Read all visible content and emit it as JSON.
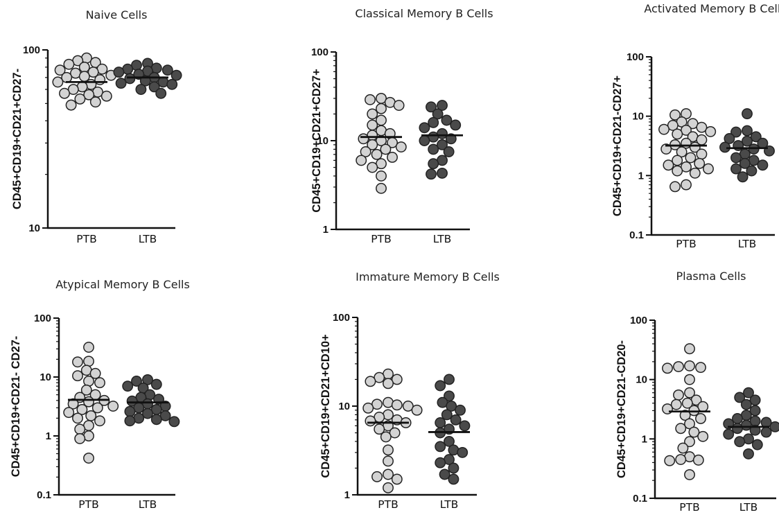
{
  "chart_data": [
    {
      "type": "scatter",
      "title": "Naive Cells",
      "ylabel": "CD45+CD19+CD21+CD27-",
      "yscale": "log",
      "ylim": [
        10,
        100
      ],
      "yticks": [
        "10",
        "100"
      ],
      "categories": [
        "PTB",
        "LTB"
      ],
      "series": [
        {
          "category": "PTB",
          "color": "#d3d3d3",
          "mean": 66,
          "values": [
            90,
            87,
            85,
            83,
            80,
            78,
            77,
            75,
            74,
            72,
            71,
            70,
            68,
            66,
            64,
            62,
            60,
            58,
            57,
            56,
            55,
            53,
            51,
            49
          ]
        },
        {
          "category": "LTB",
          "color": "#4a4a4a",
          "mean": 70,
          "values": [
            84,
            82,
            79,
            78,
            77,
            76,
            75,
            73,
            72,
            70,
            69,
            67,
            66,
            65,
            64,
            62,
            60,
            57
          ]
        }
      ]
    },
    {
      "type": "scatter",
      "title": "Classical Memory B Cells",
      "ylabel": "CD45+CD19+CD21+CD27+",
      "yscale": "log",
      "ylim": [
        1,
        100
      ],
      "yticks": [
        "1",
        "10",
        "100"
      ],
      "categories": [
        "PTB",
        "LTB"
      ],
      "series": [
        {
          "category": "PTB",
          "color": "#d3d3d3",
          "mean": 11,
          "values": [
            30,
            29,
            27,
            25,
            23,
            20,
            17,
            15,
            13,
            12,
            11.5,
            10.5,
            10,
            9.5,
            9,
            8.5,
            8,
            7.5,
            7,
            6.5,
            6,
            5.5,
            5,
            4,
            2.9
          ]
        },
        {
          "category": "LTB",
          "color": "#4a4a4a",
          "mean": 11.5,
          "values": [
            25,
            24,
            20,
            17,
            16,
            15,
            14,
            12,
            11,
            10.5,
            10,
            9,
            8,
            7.5,
            6,
            5.5,
            4.3,
            4.2
          ]
        }
      ]
    },
    {
      "type": "scatter",
      "title": "Activated Memory B Cells",
      "ylabel": "CD45+CD19+CD21-CD27+",
      "yscale": "log",
      "ylim": [
        0.1,
        100
      ],
      "yticks": [
        "0.1",
        "1",
        "10",
        "100"
      ],
      "categories": [
        "PTB",
        "LTB"
      ],
      "series": [
        {
          "category": "PTB",
          "color": "#d3d3d3",
          "mean": 3.2,
          "values": [
            11,
            10.5,
            8,
            7.5,
            7,
            6.5,
            6,
            5.8,
            5.5,
            5,
            4.5,
            4,
            3.5,
            3.3,
            3,
            2.8,
            2.5,
            2.3,
            2,
            1.8,
            1.6,
            1.5,
            1.4,
            1.3,
            1.2,
            1.1,
            0.7,
            0.65
          ]
        },
        {
          "category": "LTB",
          "color": "#4a4a4a",
          "mean": 2.9,
          "values": [
            11,
            5.7,
            5.4,
            4.5,
            4.2,
            3.8,
            3.5,
            3.2,
            3,
            2.8,
            2.6,
            2.3,
            2,
            1.8,
            1.6,
            1.5,
            1.3,
            1.2,
            0.95
          ]
        }
      ]
    },
    {
      "type": "scatter",
      "title": "Atypical Memory B Cells",
      "ylabel": "CD45+CD19+CD21- CD27-",
      "yscale": "log",
      "ylim": [
        0.1,
        100
      ],
      "yticks": [
        "0.1",
        "1",
        "10",
        "100"
      ],
      "categories": [
        "PTB",
        "LTB"
      ],
      "series": [
        {
          "category": "PTB",
          "color": "#d3d3d3",
          "mean": 4.1,
          "values": [
            32,
            18.5,
            18,
            13,
            11.5,
            10.5,
            8.5,
            8,
            6,
            5,
            4.5,
            4,
            3.8,
            3.5,
            3.2,
            3,
            2.8,
            2.5,
            2.2,
            2,
            1.8,
            1.5,
            1.3,
            1,
            0.9,
            0.42
          ]
        },
        {
          "category": "LTB",
          "color": "#4a4a4a",
          "mean": 3.7,
          "values": [
            9,
            8.5,
            7.5,
            7,
            6.5,
            5,
            4.5,
            4.2,
            3.9,
            3.5,
            3.2,
            3,
            2.8,
            2.6,
            2.4,
            2.2,
            2,
            1.9,
            1.8,
            1.75
          ]
        }
      ]
    },
    {
      "type": "scatter",
      "title": "Immature Memory B Cells",
      "ylabel": "CD45+CD19+CD21+CD10+",
      "yscale": "log",
      "ylim": [
        1,
        100
      ],
      "yticks": [
        "1",
        "10",
        "100"
      ],
      "categories": [
        "PTB",
        "LTB"
      ],
      "series": [
        {
          "category": "PTB",
          "color": "#d3d3d3",
          "mean": 6.5,
          "values": [
            23,
            21,
            20,
            19,
            18,
            11,
            10.5,
            10.3,
            10,
            9.5,
            9,
            8,
            7.5,
            7,
            6.8,
            6.5,
            6,
            5.5,
            5,
            4.5,
            3.2,
            2.4,
            1.7,
            1.6,
            1.5,
            1.2
          ]
        },
        {
          "category": "LTB",
          "color": "#4a4a4a",
          "mean": 5.1,
          "values": [
            20,
            17,
            13,
            11,
            10,
            9,
            8,
            7,
            6.5,
            6,
            5.5,
            5,
            4,
            3.5,
            3.2,
            3,
            2.5,
            2.3,
            2,
            1.7,
            1.5
          ]
        }
      ]
    },
    {
      "type": "scatter",
      "title": "Plasma Cells",
      "ylabel": "CD45+CD19+CD21-CD20-",
      "yscale": "log",
      "ylim": [
        0.1,
        100
      ],
      "yticks": [
        "0.1",
        "1",
        "10",
        "100"
      ],
      "categories": [
        "PTB",
        "LTB"
      ],
      "series": [
        {
          "category": "PTB",
          "color": "#d3d3d3",
          "mean": 2.9,
          "values": [
            33,
            17,
            16.5,
            16,
            15.5,
            10,
            6,
            5.5,
            4.5,
            4,
            3.8,
            3.5,
            3.2,
            3,
            2.5,
            2.2,
            1.8,
            1.5,
            1.3,
            1.1,
            0.9,
            0.7,
            0.5,
            0.45,
            0.44,
            0.43,
            0.25
          ]
        },
        {
          "category": "LTB",
          "color": "#4a4a4a",
          "mean": 1.6,
          "values": [
            6,
            5,
            4.5,
            3.8,
            3,
            2.5,
            2.2,
            2,
            1.9,
            1.8,
            1.7,
            1.6,
            1.5,
            1.4,
            1.3,
            1.2,
            1,
            0.9,
            0.8,
            0.56
          ]
        }
      ]
    }
  ]
}
